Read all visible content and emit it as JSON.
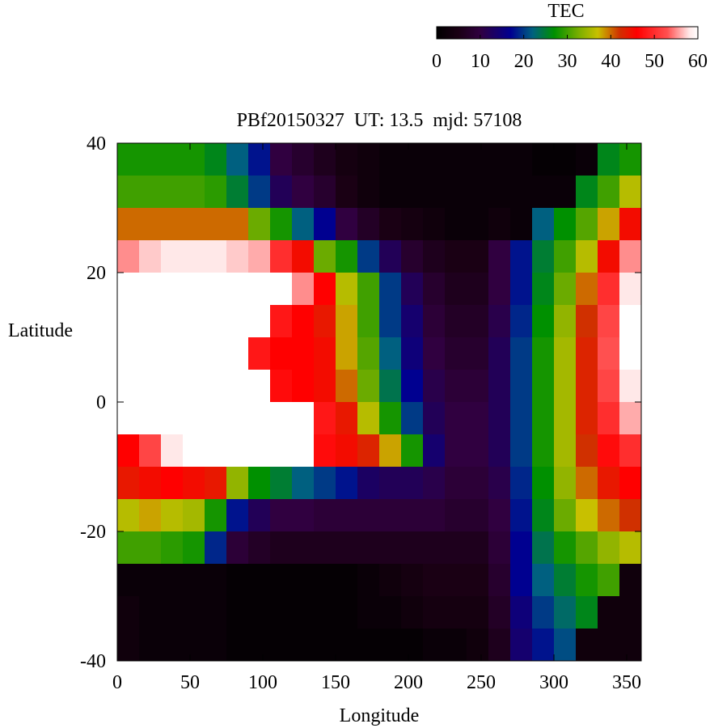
{
  "chart_data": {
    "type": "heatmap",
    "title": "PBf20150327  UT: 13.5  mjd: 57108",
    "x_label": "Longitude",
    "y_label": "Latitude",
    "colorbar_label": "TEC",
    "xlim": [
      0,
      360
    ],
    "xticks": [
      0,
      50,
      100,
      150,
      200,
      250,
      300,
      350
    ],
    "ylim": [
      -40,
      40
    ],
    "yticks": [
      -40,
      -20,
      0,
      20,
      40
    ],
    "clim": [
      0,
      60
    ],
    "cticks": [
      0,
      10,
      20,
      30,
      40,
      50,
      60
    ],
    "colorscale": [
      [
        0,
        "#000000"
      ],
      [
        5,
        "#1a0014"
      ],
      [
        10,
        "#300040"
      ],
      [
        17,
        "#000090"
      ],
      [
        22,
        "#006080"
      ],
      [
        27,
        "#009000"
      ],
      [
        33,
        "#80b000"
      ],
      [
        37,
        "#c8c000"
      ],
      [
        42,
        "#d03000"
      ],
      [
        46,
        "#ff0000"
      ],
      [
        53,
        "#ff5050"
      ],
      [
        58,
        "#ffe8e8"
      ],
      [
        60,
        "#ffffff"
      ]
    ],
    "x": [
      7.5,
      22.5,
      37.5,
      52.5,
      67.5,
      82.5,
      97.5,
      112.5,
      127.5,
      142.5,
      157.5,
      172.5,
      187.5,
      202.5,
      217.5,
      232.5,
      247.5,
      262.5,
      277.5,
      292.5,
      307.5,
      322.5,
      337.5,
      352.5
    ],
    "y": [
      37.5,
      32.5,
      27.5,
      22.5,
      17.5,
      12.5,
      7.5,
      2.5,
      -2.5,
      -7.5,
      -12.5,
      -17.5,
      -22.5,
      -27.5,
      -32.5,
      -37.5
    ],
    "z": [
      [
        28,
        28,
        28,
        28,
        26,
        22,
        18,
        10,
        8,
        6,
        4,
        3,
        2,
        2,
        2,
        2,
        2,
        2,
        2,
        1,
        1,
        2,
        26,
        28
      ],
      [
        30,
        30,
        30,
        30,
        29,
        25,
        20,
        12,
        10,
        8,
        5,
        3,
        2,
        2,
        2,
        2,
        2,
        2,
        2,
        2,
        2,
        26,
        30,
        36
      ],
      [
        40,
        40,
        40,
        40,
        40,
        40,
        32,
        28,
        22,
        17,
        10,
        7,
        5,
        4,
        3,
        2,
        2,
        3,
        2,
        22,
        27,
        31,
        38,
        45
      ],
      [
        55,
        57,
        58,
        58,
        58,
        57,
        56,
        50,
        45,
        32,
        28,
        20,
        12,
        8,
        6,
        5,
        5,
        10,
        18,
        25,
        30,
        36,
        45,
        55
      ],
      [
        60,
        60,
        60,
        60,
        60,
        60,
        60,
        60,
        55,
        46,
        36,
        30,
        20,
        12,
        8,
        6,
        6,
        10,
        18,
        26,
        32,
        40,
        50,
        58
      ],
      [
        60,
        60,
        60,
        60,
        60,
        60,
        60,
        48,
        46,
        44,
        38,
        30,
        20,
        14,
        9,
        7,
        7,
        11,
        19,
        27,
        34,
        42,
        52,
        60
      ],
      [
        60,
        60,
        60,
        60,
        60,
        60,
        48,
        46,
        46,
        45,
        38,
        31,
        22,
        15,
        10,
        8,
        8,
        12,
        20,
        28,
        35,
        43,
        53,
        60
      ],
      [
        60,
        60,
        60,
        60,
        60,
        60,
        60,
        47,
        46,
        45,
        40,
        32,
        24,
        17,
        11,
        9,
        9,
        12,
        20,
        28,
        35,
        43,
        52,
        58
      ],
      [
        60,
        60,
        60,
        60,
        60,
        60,
        60,
        60,
        60,
        48,
        44,
        36,
        28,
        20,
        12,
        10,
        10,
        12,
        20,
        28,
        35,
        43,
        50,
        56
      ],
      [
        46,
        52,
        58,
        60,
        60,
        60,
        60,
        60,
        60,
        47,
        45,
        43,
        38,
        28,
        14,
        10,
        10,
        12,
        20,
        28,
        35,
        42,
        47,
        50
      ],
      [
        44,
        45,
        46,
        45,
        44,
        34,
        27,
        25,
        22,
        20,
        18,
        13,
        12,
        12,
        11,
        9,
        9,
        11,
        19,
        27,
        34,
        40,
        44,
        46
      ],
      [
        36,
        38,
        36,
        35,
        28,
        18,
        12,
        10,
        10,
        9,
        9,
        9,
        9,
        9,
        9,
        8,
        8,
        10,
        18,
        26,
        32,
        37,
        40,
        42
      ],
      [
        30,
        30,
        29,
        28,
        19,
        9,
        7,
        6,
        6,
        6,
        6,
        6,
        6,
        6,
        6,
        6,
        6,
        9,
        17,
        24,
        28,
        31,
        34,
        36
      ],
      [
        2,
        2,
        2,
        2,
        2,
        1,
        1,
        1,
        1,
        1,
        1,
        2,
        3,
        4,
        5,
        5,
        5,
        8,
        17,
        22,
        25,
        28,
        30,
        3
      ],
      [
        3,
        2,
        2,
        2,
        2,
        1,
        1,
        1,
        1,
        1,
        1,
        2,
        2,
        3,
        4,
        4,
        4,
        7,
        15,
        20,
        23,
        26,
        3,
        3
      ],
      [
        3,
        2,
        2,
        2,
        2,
        1,
        1,
        1,
        1,
        1,
        1,
        1,
        1,
        1,
        2,
        2,
        3,
        6,
        14,
        18,
        21,
        3,
        3,
        3
      ]
    ]
  }
}
